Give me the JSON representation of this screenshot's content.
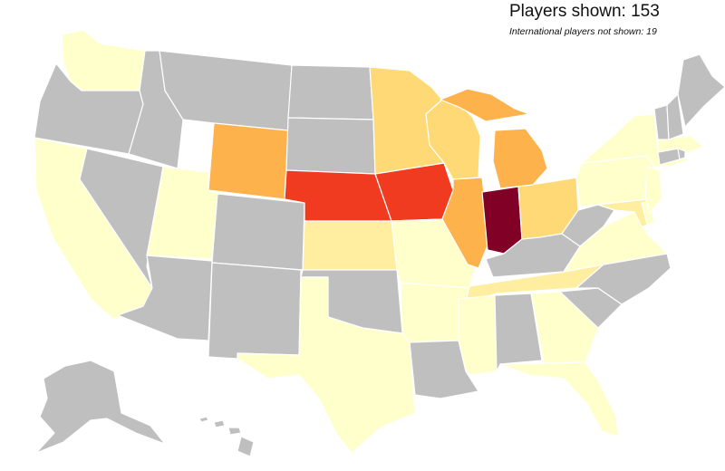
{
  "header": {
    "title": "Players shown: 153",
    "subtitle": "International players not shown: 19"
  },
  "legend_colors": {
    "none": "#bfbfbf",
    "level_1": "#ffffcc",
    "level_2": "#ffeda0",
    "level_3": "#fed976",
    "level_4": "#feb24c",
    "level_5": "#fd8d3c",
    "level_6": "#f03b20",
    "level_7": "#e31a1c",
    "level_8": "#800026"
  },
  "states": {
    "WA": "level_1",
    "OR": "none",
    "CA": "level_1",
    "ID": "none",
    "NV": "none",
    "MT": "none",
    "WY": "level_4",
    "UT": "level_1",
    "AZ": "none",
    "CO": "none",
    "NM": "none",
    "ND": "none",
    "SD": "none",
    "NE": "level_6",
    "KS": "level_2",
    "OK": "none",
    "TX": "level_1",
    "MN": "level_3",
    "IA": "level_6",
    "MO": "level_1",
    "AR": "level_1",
    "LA": "none",
    "WI": "level_3",
    "IL": "level_4",
    "MI": "level_4",
    "IN": "level_8",
    "OH": "level_3",
    "KY": "none",
    "TN": "level_2",
    "MS": "level_1",
    "AL": "none",
    "GA": "level_1",
    "FL": "level_1",
    "SC": "none",
    "NC": "none",
    "VA": "level_1",
    "WV": "none",
    "MD": "level_2",
    "DE": "level_1",
    "PA": "level_1",
    "NJ": "level_1",
    "NY": "level_1",
    "CT": "none",
    "RI": "none",
    "MA": "level_1",
    "VT": "none",
    "NH": "none",
    "ME": "none",
    "AK": "none",
    "HI": "none"
  }
}
